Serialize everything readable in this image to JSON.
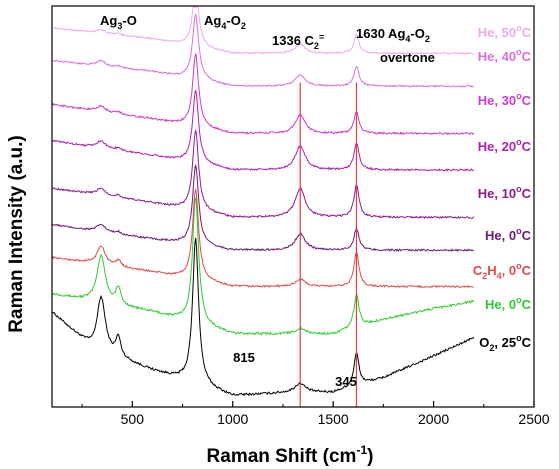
{
  "chart_data": {
    "type": "line",
    "title": "",
    "xlabel": "Raman Shift (cm",
    "xlabel_sup": "-1",
    "xlabel_end": ")",
    "ylabel": "Raman Intensity (a.u.)",
    "xlim": [
      100,
      2500
    ],
    "ylim": [
      0,
      11
    ],
    "xticks": [
      500,
      1000,
      1500,
      2000,
      2500
    ],
    "xtick_labels": [
      "500",
      "1000",
      "1500",
      "2000",
      "2500"
    ],
    "grid": false,
    "vlines": [
      1336,
      1616
    ],
    "vline_color": "#e53b3b",
    "series": [
      {
        "id": "o2-25",
        "label": "O",
        "sub": "2",
        "mid": ", 25",
        "sup": "o",
        "end": "C",
        "color": "#000000",
        "offset": 0.0,
        "bands": {
          "a345": 1.5,
          "a815": 4.0,
          "a1336": 0.25,
          "a1616": 0.9,
          "noise": 0.06
        },
        "baseline": [
          [
            100,
            2.6
          ],
          [
            300,
            1.6
          ],
          [
            600,
            1.0
          ],
          [
            1000,
            0.3
          ],
          [
            1300,
            0.4
          ],
          [
            1500,
            0.4
          ],
          [
            1750,
            0.8
          ],
          [
            2000,
            1.4
          ],
          [
            2200,
            1.9
          ]
        ]
      },
      {
        "id": "he-0-green",
        "label": "He, 0",
        "sup": "o",
        "end": "C",
        "color": "#2ecc2e",
        "offset": 1.6,
        "bands": {
          "a345": 1.3,
          "a815": 3.5,
          "a1336": 0.15,
          "a1616": 0.9,
          "noise": 0.06
        },
        "baseline": [
          [
            100,
            1.5
          ],
          [
            300,
            1.3
          ],
          [
            600,
            1.0
          ],
          [
            1000,
            0.4
          ],
          [
            1300,
            0.4
          ],
          [
            1500,
            0.4
          ],
          [
            1750,
            0.8
          ],
          [
            2000,
            1.1
          ],
          [
            2200,
            1.3
          ]
        ]
      },
      {
        "id": "c2h4-0",
        "label": "C",
        "sub": "2",
        "mid": "H",
        "sub2": "4",
        "mid2": ", 0",
        "sup": "o",
        "end": "C",
        "color": "#e24a4a",
        "offset": 3.0,
        "bands": {
          "a345": 0.5,
          "a815": 2.5,
          "a1336": 0.2,
          "a1616": 0.95,
          "noise": 0.05
        },
        "baseline": [
          [
            100,
            1.1
          ],
          [
            600,
            0.7
          ],
          [
            1000,
            0.3
          ],
          [
            1500,
            0.3
          ],
          [
            2200,
            0.3
          ]
        ]
      },
      {
        "id": "he-0-purple",
        "label": "He, 0",
        "sup": "o",
        "end": "C",
        "color": "#6a1a78",
        "offset": 4.1,
        "bands": {
          "a345": 0.2,
          "a815": 2.2,
          "a1336": 0.45,
          "a1616": 0.6,
          "noise": 0.05
        },
        "baseline": [
          [
            100,
            0.9
          ],
          [
            600,
            0.5
          ],
          [
            1000,
            0.2
          ],
          [
            2200,
            0.2
          ]
        ]
      },
      {
        "id": "he-10",
        "label": "He, 10",
        "sup": "o",
        "end": "C",
        "color": "#8e1a8e",
        "offset": 5.0,
        "bands": {
          "a345": 0.2,
          "a815": 2.2,
          "a1336": 0.8,
          "a1616": 0.9,
          "noise": 0.05
        },
        "baseline": [
          [
            100,
            1.0
          ],
          [
            600,
            0.6
          ],
          [
            1000,
            0.2
          ],
          [
            2200,
            0.2
          ]
        ]
      },
      {
        "id": "he-20",
        "label": "He, 20",
        "sup": "o",
        "end": "C",
        "color": "#b21fb2",
        "offset": 6.3,
        "bands": {
          "a345": 0.2,
          "a815": 2.0,
          "a1336": 0.65,
          "a1616": 0.75,
          "noise": 0.05
        },
        "baseline": [
          [
            100,
            1.0
          ],
          [
            600,
            0.6
          ],
          [
            1000,
            0.2
          ],
          [
            2200,
            0.2
          ]
        ]
      },
      {
        "id": "he-30",
        "label": "He, 30",
        "sup": "o",
        "end": "C",
        "color": "#cc3ccc",
        "offset": 7.3,
        "bands": {
          "a345": 0.15,
          "a815": 2.0,
          "a1336": 0.5,
          "a1616": 0.6,
          "noise": 0.05
        },
        "baseline": [
          [
            100,
            1.0
          ],
          [
            600,
            0.6
          ],
          [
            1000,
            0.2
          ],
          [
            2200,
            0.2
          ]
        ]
      },
      {
        "id": "he-40",
        "label": "He, 40",
        "sup": "o",
        "end": "C",
        "color": "#dd6edd",
        "offset": 8.6,
        "bands": {
          "a345": 0.15,
          "a815": 1.8,
          "a1336": 0.3,
          "a1616": 0.55,
          "noise": 0.04
        },
        "baseline": [
          [
            100,
            0.9
          ],
          [
            600,
            0.6
          ],
          [
            1000,
            0.2
          ],
          [
            2200,
            0.2
          ]
        ]
      },
      {
        "id": "he-50",
        "label": "He, 50",
        "sup": "o",
        "end": "C",
        "color": "#eeaaee",
        "offset": 9.5,
        "bands": {
          "a345": 0.1,
          "a815": 1.6,
          "a1336": 0.25,
          "a1616": 0.5,
          "noise": 0.04
        },
        "baseline": [
          [
            100,
            0.9
          ],
          [
            600,
            0.6
          ],
          [
            1000,
            0.2
          ],
          [
            2200,
            0.2
          ]
        ]
      }
    ],
    "annotations": {
      "ag3o": {
        "text": "Ag",
        "sub": "3",
        "end": "-O"
      },
      "ag4o2": {
        "text": "Ag",
        "sub": "4",
        "end": "-O",
        "sub2": "2"
      },
      "c2": {
        "text": "1336 C",
        "sub": "2",
        "sup": "="
      },
      "overtone_top": {
        "text": "1630 Ag",
        "sub": "4",
        "end": "-O",
        "sub2": "2"
      },
      "overtone": "overtone",
      "p345": "345",
      "p815": "815"
    }
  }
}
